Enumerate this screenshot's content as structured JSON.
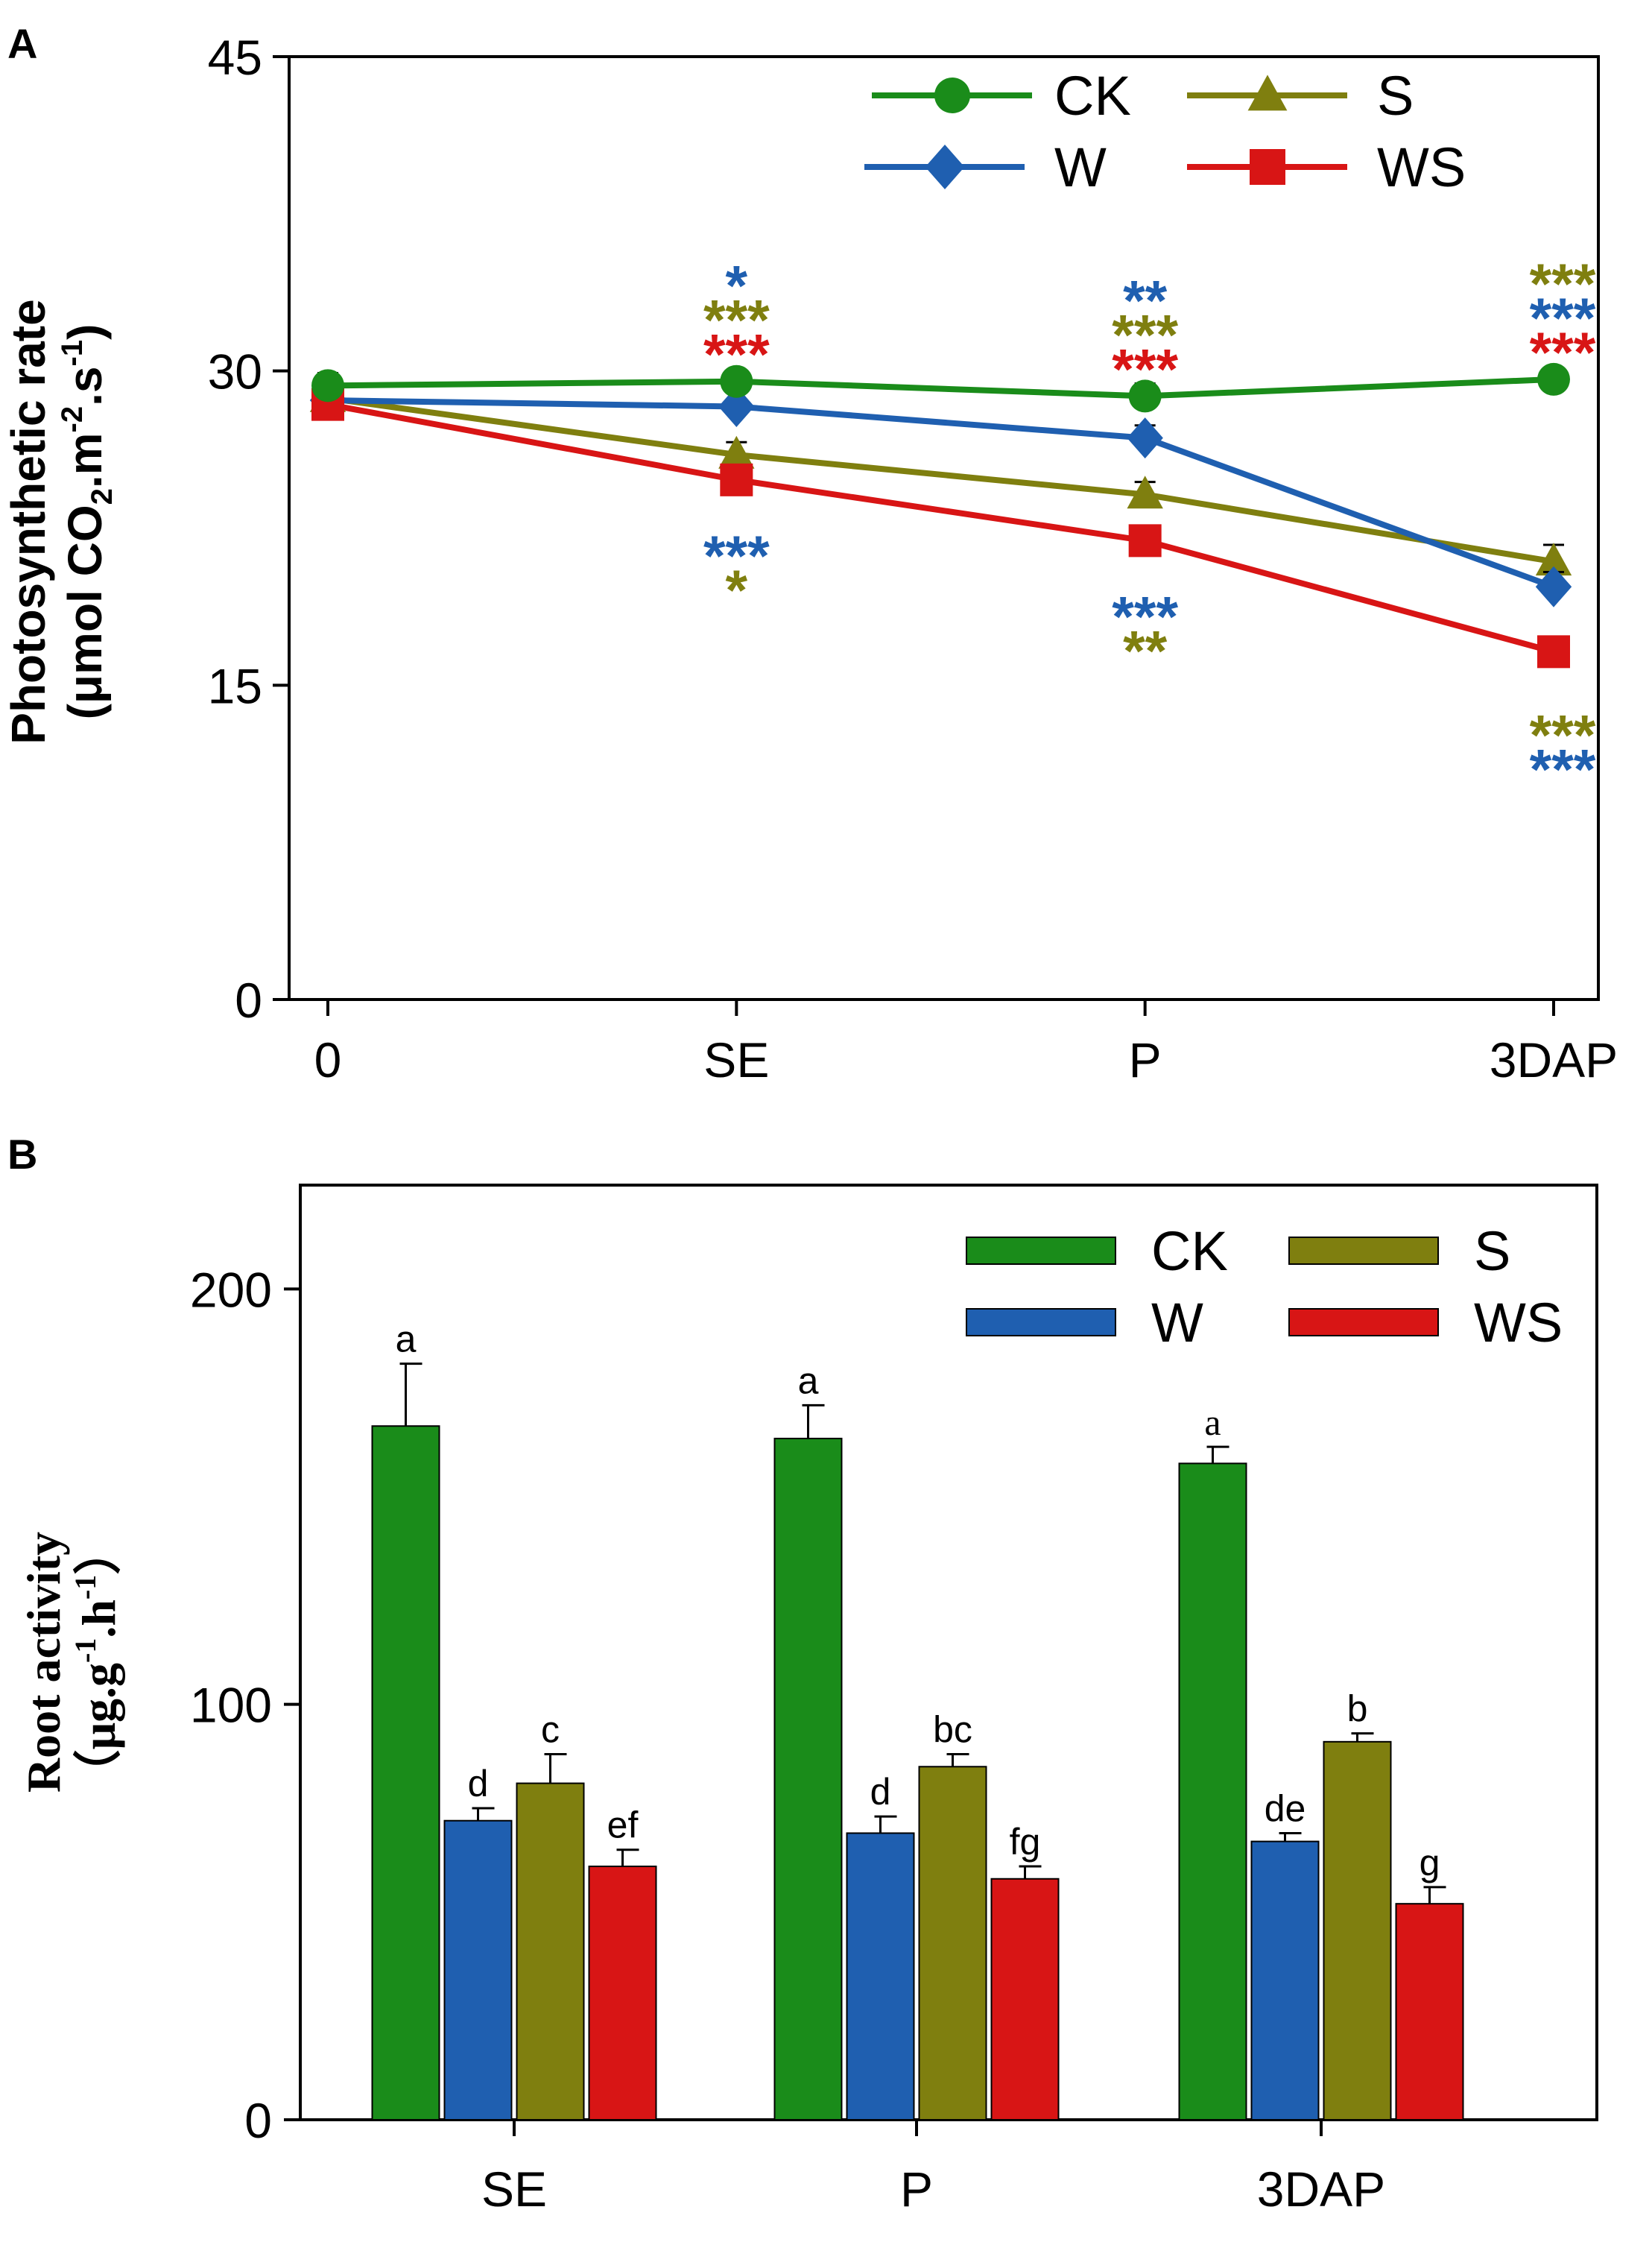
{
  "panel_labels": [
    "A",
    "B"
  ],
  "colors": {
    "CK": "#1a8c1a",
    "W": "#1f5fb0",
    "S": "#7f7f0f",
    "WS": "#d81515",
    "axis": "#000000"
  },
  "chart_data": [
    {
      "panel": "A",
      "type": "line",
      "title": "",
      "xlabel": "",
      "ylabel_line1": "Photosynthetic rate",
      "ylabel_line2_parts": [
        "(μmol CO",
        "2",
        ".m",
        "-2",
        ".s",
        "-1",
        ")"
      ],
      "categories": [
        "0",
        "SE",
        "P",
        "3DAP"
      ],
      "ylim": [
        0,
        45
      ],
      "yticks": [
        "0",
        "15",
        "30",
        "45"
      ],
      "yticks_values": [
        0,
        15,
        30,
        45
      ],
      "legend_position": "top-right",
      "series": [
        {
          "name": "CK",
          "color": "#1a8c1a",
          "marker": "circle",
          "values": [
            29.3,
            29.5,
            28.8,
            29.6
          ],
          "errors": [
            0.6,
            0.5,
            0.6,
            0.5
          ]
        },
        {
          "name": "S",
          "color": "#7f7f0f",
          "marker": "triangle",
          "values": [
            28.7,
            26.0,
            24.1,
            20.9
          ],
          "errors": [
            0.6,
            0.6,
            0.6,
            0.8
          ]
        },
        {
          "name": "W",
          "color": "#1f5fb0",
          "marker": "diamond",
          "values": [
            28.6,
            28.3,
            26.8,
            19.7
          ],
          "errors": [
            0.6,
            0.7,
            0.6,
            0.7
          ]
        },
        {
          "name": "WS",
          "color": "#d81515",
          "marker": "square",
          "values": [
            28.4,
            24.8,
            21.9,
            16.6
          ],
          "errors": [
            1.0,
            0.6,
            0.6,
            0.5
          ]
        }
      ],
      "legend_order": [
        "CK",
        "S",
        "W",
        "WS"
      ],
      "significance": [
        {
          "category": "SE",
          "position": "above",
          "rows": [
            {
              "text": "*",
              "series": "W"
            },
            {
              "text": "***",
              "series": "S"
            },
            {
              "text": "***",
              "series": "WS"
            }
          ]
        },
        {
          "category": "SE",
          "position": "below",
          "rows": [
            {
              "text": "***",
              "series": "W"
            },
            {
              "text": "*",
              "series": "S"
            }
          ]
        },
        {
          "category": "P",
          "position": "above",
          "rows": [
            {
              "text": "**",
              "series": "W"
            },
            {
              "text": "***",
              "series": "S"
            },
            {
              "text": "***",
              "series": "WS"
            }
          ]
        },
        {
          "category": "P",
          "position": "below",
          "rows": [
            {
              "text": "***",
              "series": "W"
            },
            {
              "text": "**",
              "series": "S"
            }
          ]
        },
        {
          "category": "3DAP",
          "position": "above",
          "rows": [
            {
              "text": "***",
              "series": "S"
            },
            {
              "text": "***",
              "series": "W"
            },
            {
              "text": "***",
              "series": "WS"
            }
          ]
        },
        {
          "category": "3DAP",
          "position": "below",
          "rows": [
            {
              "text": "***",
              "series": "S"
            },
            {
              "text": "***",
              "series": "W"
            }
          ]
        }
      ]
    },
    {
      "panel": "B",
      "type": "bar",
      "title": "",
      "xlabel": "",
      "ylabel_line1": "Root activity",
      "ylabel_line2_parts": [
        "（μg.g",
        "-1",
        ".h",
        "-1",
        "）"
      ],
      "categories": [
        "SE",
        "P",
        "3DAP"
      ],
      "ylim": [
        0,
        225
      ],
      "yticks": [
        "0",
        "100",
        "200"
      ],
      "yticks_values": [
        0,
        100,
        200
      ],
      "legend_position": "top-right",
      "series": [
        {
          "name": "CK",
          "color": "#1a8c1a",
          "values": [
            167,
            164,
            158
          ],
          "errors": [
            15,
            8,
            4
          ],
          "letters": [
            "a",
            "a",
            "a"
          ]
        },
        {
          "name": "W",
          "color": "#1f5fb0",
          "values": [
            72,
            69,
            67
          ],
          "errors": [
            3,
            4,
            2
          ],
          "letters": [
            "d",
            "d",
            "de"
          ]
        },
        {
          "name": "S",
          "color": "#7f7f0f",
          "values": [
            81,
            85,
            91
          ],
          "errors": [
            7,
            3,
            2
          ],
          "letters": [
            "c",
            "bc",
            "b"
          ]
        },
        {
          "name": "WS",
          "color": "#d81515",
          "values": [
            61,
            58,
            52
          ],
          "errors": [
            4,
            3,
            4
          ],
          "letters": [
            "ef",
            "fg",
            "g"
          ]
        }
      ],
      "legend_order": [
        "CK",
        "S",
        "W",
        "WS"
      ]
    }
  ]
}
